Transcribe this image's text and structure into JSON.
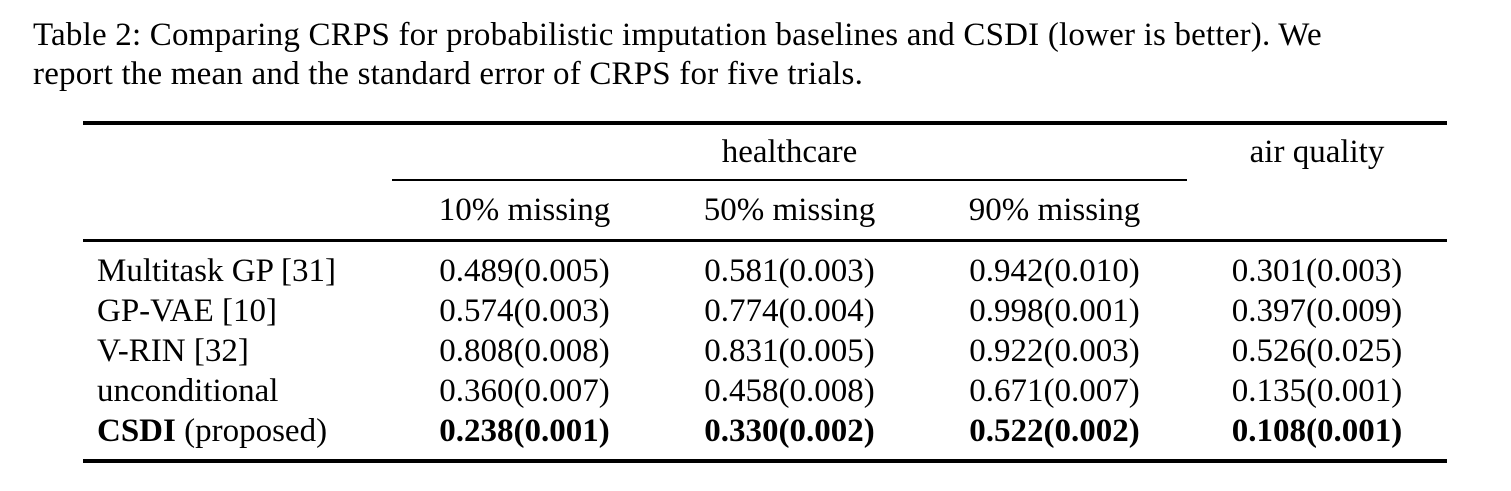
{
  "caption": {
    "line1": "Table 2: Comparing CRPS for probabilistic imputation baselines and CSDI (lower is better). We",
    "line2": "report the mean and the standard error of CRPS for five trials."
  },
  "table": {
    "group_headers": {
      "healthcare": "healthcare",
      "air_quality": "air quality"
    },
    "sub_headers": [
      "10% missing",
      "50% missing",
      "90% missing"
    ],
    "rows": [
      {
        "label": "Multitask GP [31]",
        "values": [
          "0.489(0.005)",
          "0.581(0.003)",
          "0.942(0.010)",
          "0.301(0.003)"
        ],
        "highlight": false
      },
      {
        "label": "GP-VAE [10]",
        "values": [
          "0.574(0.003)",
          "0.774(0.004)",
          "0.998(0.001)",
          "0.397(0.009)"
        ],
        "highlight": false
      },
      {
        "label": "V-RIN [32]",
        "values": [
          "0.808(0.008)",
          "0.831(0.005)",
          "0.922(0.003)",
          "0.526(0.025)"
        ],
        "highlight": false
      },
      {
        "label": "unconditional",
        "values": [
          "0.360(0.007)",
          "0.458(0.008)",
          "0.671(0.007)",
          "0.135(0.001)"
        ],
        "highlight": false
      },
      {
        "label_bold": "CSDI",
        "label_suffix": " (proposed)",
        "values": [
          "0.238(0.001)",
          "0.330(0.002)",
          "0.522(0.002)",
          "0.108(0.001)"
        ],
        "highlight": true
      }
    ]
  }
}
